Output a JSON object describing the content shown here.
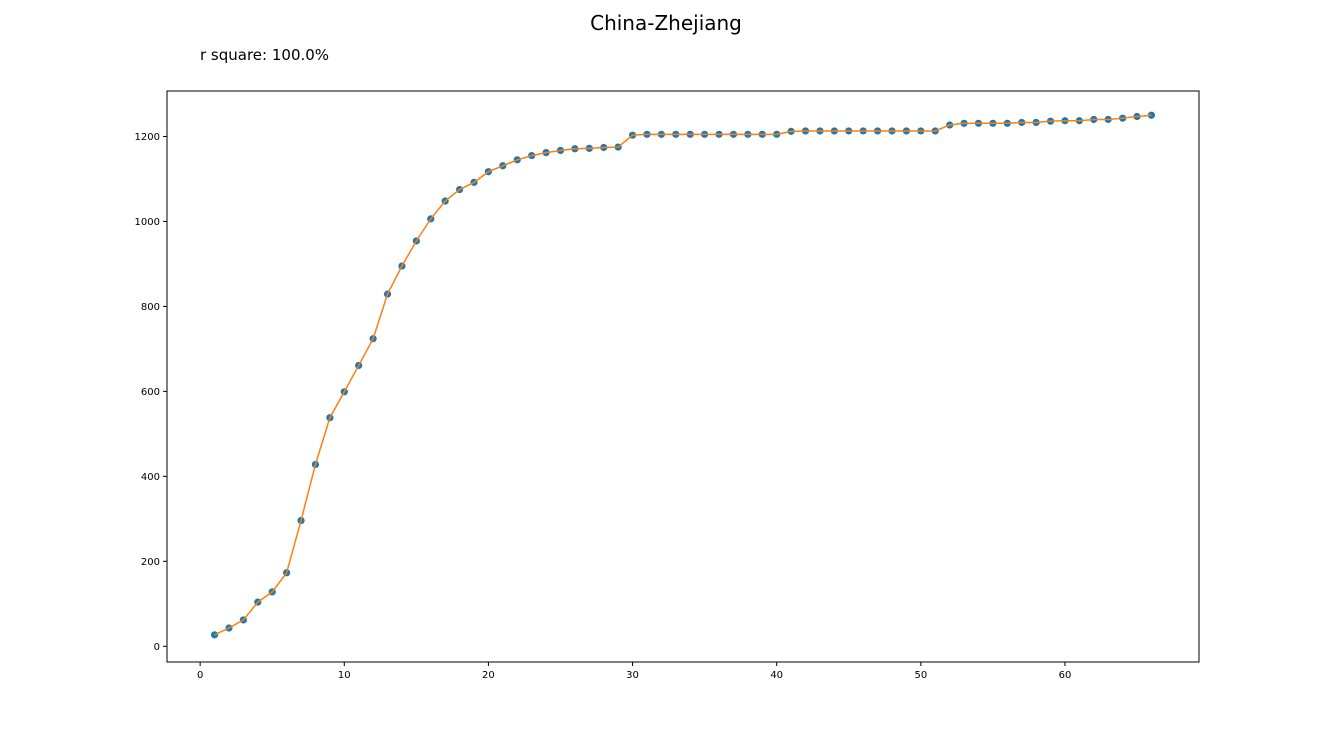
{
  "chart_data": {
    "type": "line",
    "title": "China-Zhejiang",
    "annotation": "r square: 100.0%",
    "xlabel": "",
    "ylabel": "",
    "xlim": [
      -2.3,
      69.3
    ],
    "ylim": [
      -37,
      1307
    ],
    "x_ticks": [
      0,
      10,
      20,
      30,
      40,
      50,
      60
    ],
    "y_ticks": [
      0,
      200,
      400,
      600,
      800,
      1000,
      1200
    ],
    "grid": false,
    "colors": {
      "points": "#1f77b4",
      "fit_line": "#ff7f0e"
    },
    "series": [
      {
        "kind": "scatter",
        "x": [
          1,
          2,
          3,
          4,
          5,
          6,
          7,
          8,
          9,
          10,
          11,
          12,
          13,
          14,
          15,
          16,
          17,
          18,
          19,
          20,
          21,
          22,
          23,
          24,
          25,
          26,
          27,
          28,
          29,
          30,
          31,
          32,
          33,
          34,
          35,
          36,
          37,
          38,
          39,
          40,
          41,
          42,
          43,
          44,
          45,
          46,
          47,
          48,
          49,
          50,
          51,
          52,
          53,
          54,
          55,
          56,
          57,
          58,
          59,
          60,
          61,
          62,
          63,
          64,
          65,
          66
        ],
        "y": [
          27,
          43,
          62,
          104,
          128,
          173,
          296,
          428,
          538,
          599,
          661,
          724,
          829,
          895,
          954,
          1006,
          1048,
          1075,
          1092,
          1117,
          1131,
          1145,
          1155,
          1162,
          1167,
          1171,
          1172,
          1174,
          1175,
          1203,
          1205,
          1205,
          1205,
          1205,
          1205,
          1205,
          1205,
          1205,
          1205,
          1205,
          1212,
          1213,
          1213,
          1213,
          1213,
          1213,
          1213,
          1213,
          1213,
          1213,
          1213,
          1227,
          1231,
          1231,
          1231,
          1231,
          1233,
          1233,
          1236,
          1237,
          1237,
          1240,
          1240,
          1243,
          1247,
          1250
        ]
      },
      {
        "kind": "line",
        "x": [
          1,
          2,
          3,
          4,
          5,
          6,
          7,
          8,
          9,
          10,
          11,
          12,
          13,
          14,
          15,
          16,
          17,
          18,
          19,
          20,
          21,
          22,
          23,
          24,
          25,
          26,
          27,
          28,
          29,
          30,
          31,
          32,
          33,
          34,
          35,
          36,
          37,
          38,
          39,
          40,
          41,
          42,
          43,
          44,
          45,
          46,
          47,
          48,
          49,
          50,
          51,
          52,
          53,
          54,
          55,
          56,
          57,
          58,
          59,
          60,
          61,
          62,
          63,
          64,
          65,
          66
        ],
        "y": [
          27,
          43,
          62,
          104,
          128,
          173,
          296,
          428,
          538,
          599,
          661,
          724,
          829,
          895,
          954,
          1006,
          1048,
          1075,
          1092,
          1117,
          1131,
          1145,
          1155,
          1162,
          1167,
          1171,
          1172,
          1174,
          1175,
          1203,
          1205,
          1205,
          1205,
          1205,
          1205,
          1205,
          1205,
          1205,
          1205,
          1205,
          1212,
          1213,
          1213,
          1213,
          1213,
          1213,
          1213,
          1213,
          1213,
          1213,
          1213,
          1227,
          1231,
          1231,
          1231,
          1231,
          1233,
          1233,
          1236,
          1237,
          1237,
          1240,
          1240,
          1243,
          1247,
          1250
        ]
      }
    ]
  }
}
